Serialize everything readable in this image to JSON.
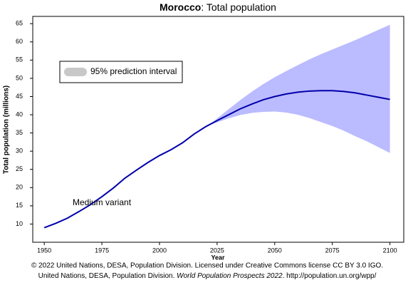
{
  "chart_data": {
    "type": "line",
    "title_country": "Morocco",
    "title_rest": ": Total population",
    "xlabel": "Year",
    "ylabel": "Total population (millions)",
    "xlim": [
      1945,
      2106
    ],
    "ylim": [
      5,
      67
    ],
    "xticks": [
      1950,
      1975,
      2000,
      2025,
      2050,
      2075,
      2100
    ],
    "yticks": [
      10,
      15,
      20,
      25,
      30,
      35,
      40,
      45,
      50,
      55,
      60,
      65
    ],
    "grid": false,
    "series": [
      {
        "name": "Medium variant",
        "color": "#0000aa",
        "x": [
          1950,
          1955,
          1960,
          1965,
          1970,
          1975,
          1980,
          1985,
          1990,
          1995,
          2000,
          2005,
          2010,
          2015,
          2020,
          2025,
          2030,
          2035,
          2040,
          2045,
          2050,
          2055,
          2060,
          2065,
          2070,
          2075,
          2080,
          2085,
          2090,
          2095,
          2100
        ],
        "values": [
          9.0,
          10.2,
          11.6,
          13.4,
          15.3,
          17.5,
          19.9,
          22.6,
          24.8,
          26.9,
          28.8,
          30.4,
          32.3,
          34.7,
          36.7,
          38.4,
          40.0,
          41.6,
          42.9,
          44.1,
          45.0,
          45.7,
          46.2,
          46.5,
          46.6,
          46.6,
          46.4,
          46.0,
          45.4,
          44.8,
          44.2
        ]
      }
    ],
    "band": {
      "name": "95% prediction interval",
      "color": "#bbbbff",
      "legend_color": "#c8c8c8",
      "x": [
        2022,
        2025,
        2030,
        2035,
        2040,
        2045,
        2050,
        2055,
        2060,
        2065,
        2070,
        2075,
        2080,
        2085,
        2090,
        2095,
        2100
      ],
      "upper": [
        37.4,
        39.0,
        41.5,
        44.0,
        46.3,
        48.4,
        50.3,
        52.0,
        53.6,
        55.2,
        56.6,
        57.9,
        59.2,
        60.5,
        61.9,
        63.3,
        64.7
      ],
      "lower": [
        37.2,
        37.9,
        39.0,
        39.9,
        40.5,
        40.8,
        40.9,
        40.6,
        40.0,
        39.1,
        38.0,
        36.9,
        35.6,
        34.1,
        32.7,
        31.1,
        29.5
      ]
    },
    "footer": {
      "line1": "© 2022 United Nations, DESA, Population Division. Licensed under Creative Commons license CC BY 3.0 IGO.",
      "line2_pre": "United Nations, DESA, Population Division. ",
      "line2_italic": "World Population Prospects 2022",
      "line2_post": ". http://population.un.org/wpp/"
    }
  }
}
